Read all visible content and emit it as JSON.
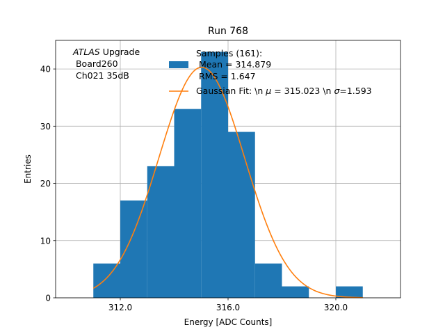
{
  "chart_data": {
    "type": "bar",
    "title": "Run 768",
    "xlabel": "Energy [ADC Counts]",
    "ylabel": "Entries",
    "xlim": [
      309.6,
      322.4
    ],
    "ylim": [
      0,
      45
    ],
    "x_ticks": [
      {
        "value": 312,
        "label": "312.0"
      },
      {
        "value": 316,
        "label": "316.0"
      },
      {
        "value": 320,
        "label": "320.0"
      }
    ],
    "y_ticks": [
      0,
      10,
      20,
      30,
      40
    ],
    "grid": true,
    "histogram": {
      "name": "Samples",
      "bin_edges": [
        311,
        312,
        313,
        314,
        315,
        316,
        317,
        318,
        319,
        320,
        321
      ],
      "counts": [
        6,
        17,
        23,
        33,
        43,
        29,
        6,
        2,
        0,
        2
      ],
      "color": "#1f77b4"
    },
    "gaussian_fit": {
      "name": "Gaussian Fit",
      "mu": 315.023,
      "sigma": 1.593,
      "amplitude": 40.3,
      "x_range": [
        311,
        321
      ],
      "color": "#ff7f0e"
    },
    "annotation": {
      "experiment": "ATLAS",
      "subtitle": " Upgrade",
      "line2": " Board260",
      "line3": " Ch021 35dB"
    },
    "legend": {
      "position": "top-right",
      "hist_label_lines": [
        "Samples (161):",
        " Mean = 314.879",
        " RMS = 1.647"
      ],
      "fit_label": "Gaussian Fit: \\n $\\mu$ = 315.023 \\n $\\sigma$=1.593",
      "fit_label_parts": {
        "prefix": "Gaussian Fit: \\n ",
        "mu_symbol": "μ",
        "mu_text": " = 315.023 \\n ",
        "sigma_symbol": "σ",
        "sigma_text": "=1.593"
      }
    }
  }
}
